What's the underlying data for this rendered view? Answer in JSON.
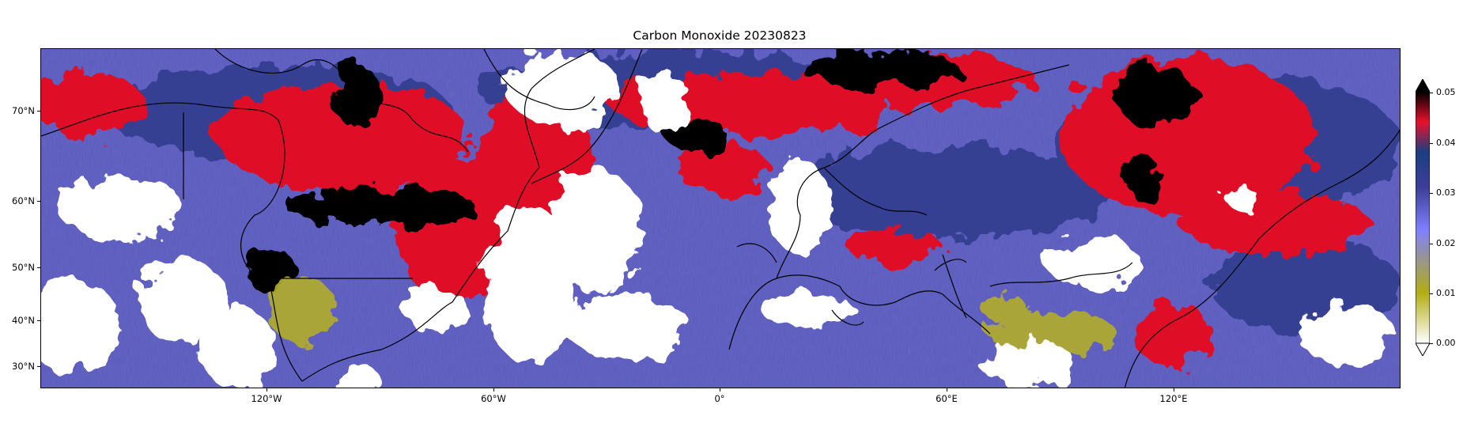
{
  "title": "Carbon Monoxide 20230823",
  "lat_labels": [
    "70°N",
    "60°N",
    "50°N",
    "40°N",
    "30°N"
  ],
  "lon_labels": [
    "120°W",
    "60°W",
    "0°",
    "60°E",
    "120°E"
  ],
  "colorbar": {
    "labels": [
      "0.05",
      "0.04",
      "0.03",
      "0.02",
      "0.01",
      "0.00"
    ],
    "colors": [
      "#ffffff",
      "#b3ad12",
      "#8080ff",
      "#3d3d99",
      "#1c3f80",
      "#e8102c",
      "#000000"
    ]
  }
}
